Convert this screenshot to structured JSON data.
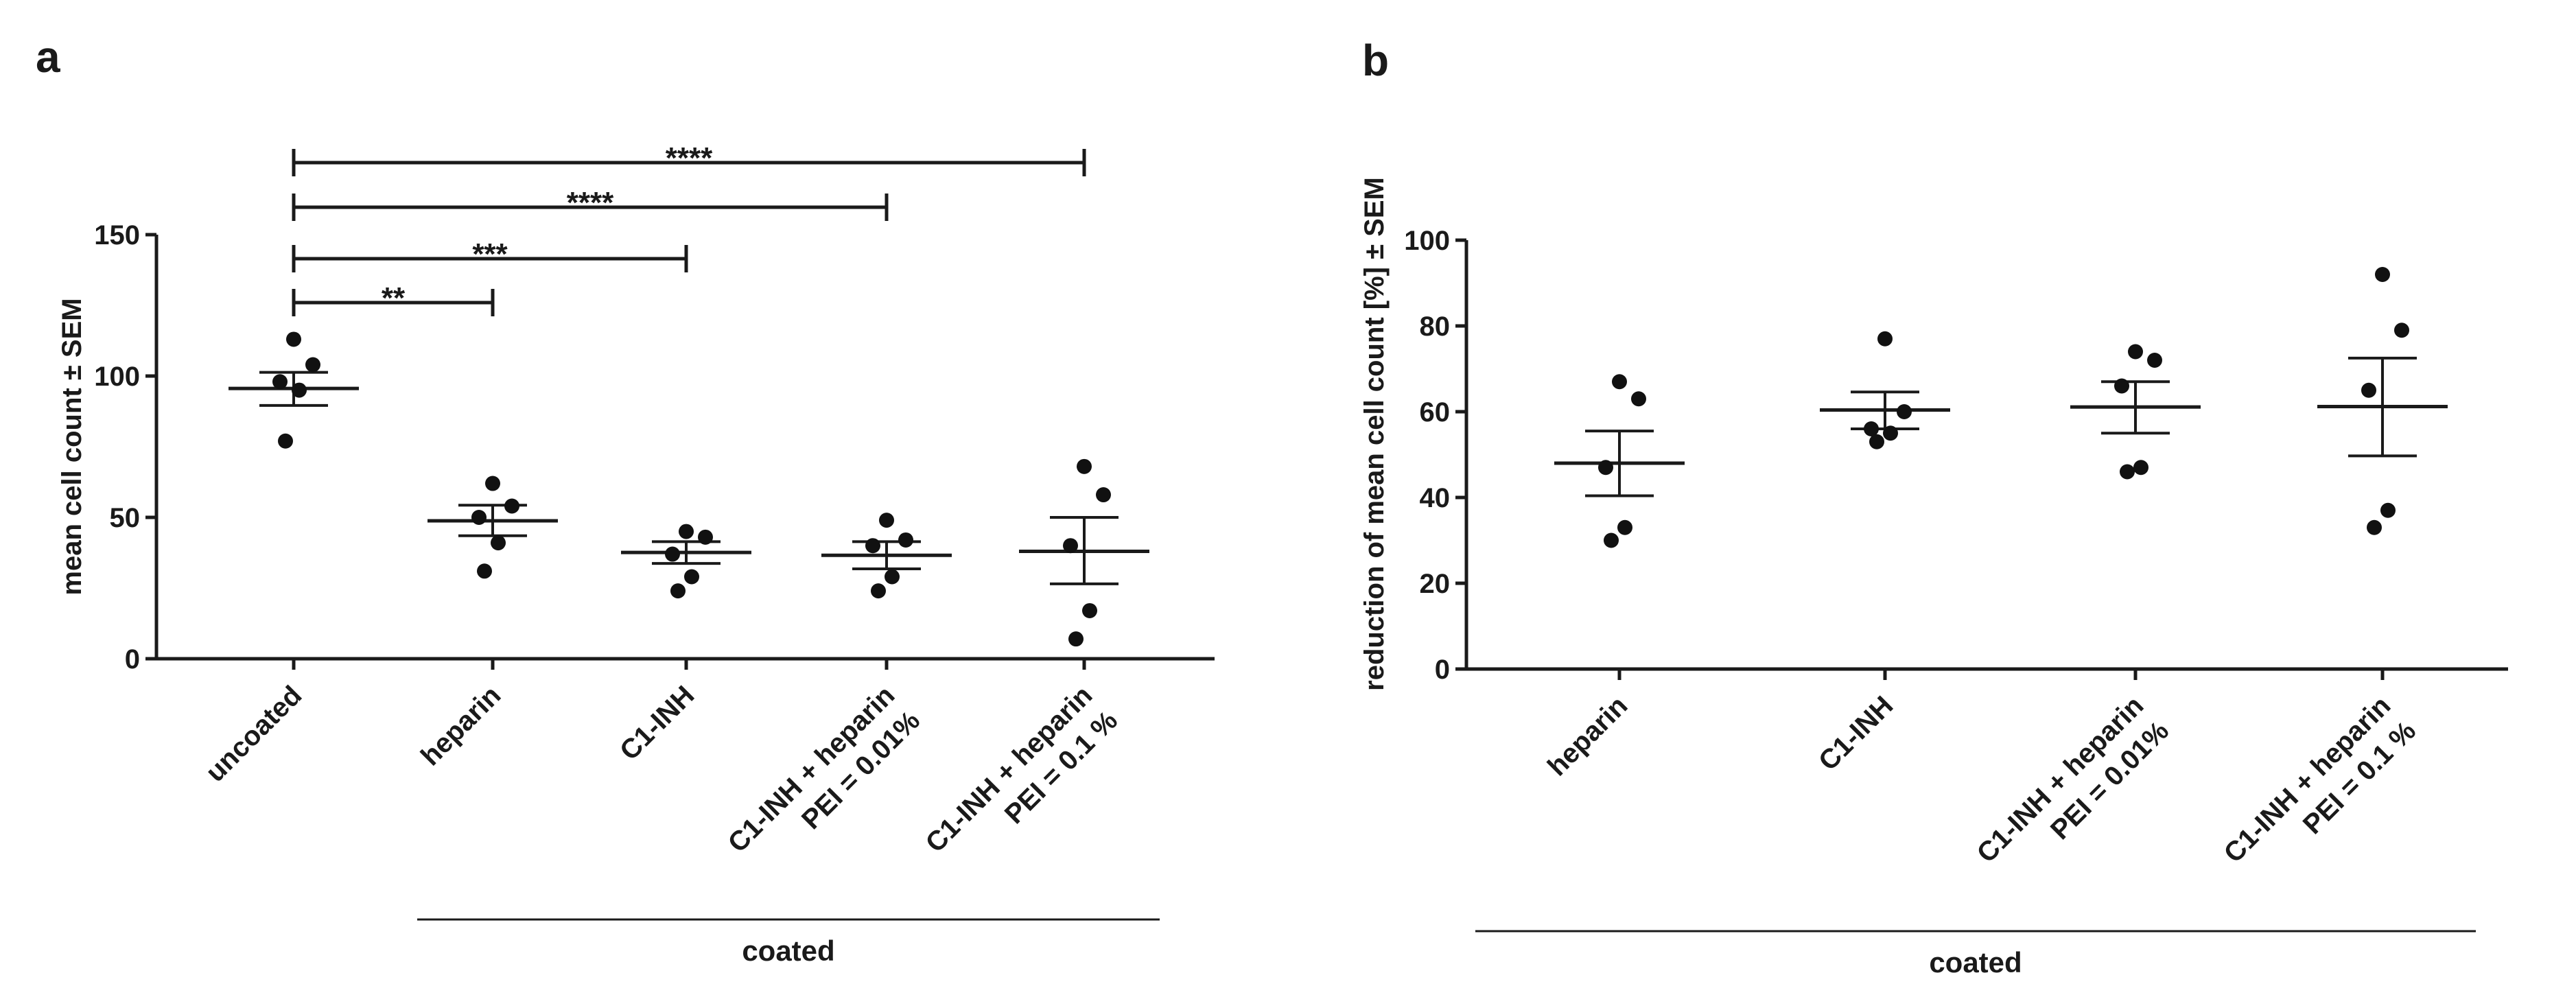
{
  "chart_data": [
    {
      "panel": "a",
      "type": "scatter",
      "ylabel": "mean cell count ± SEM",
      "ylim": [
        0,
        150
      ],
      "yticks": [
        0,
        50,
        100,
        150
      ],
      "group_label": "coated",
      "categories": [
        {
          "lines": [
            "uncoated"
          ],
          "points": [
            113,
            104,
            98,
            95,
            77
          ],
          "mean": 95.6,
          "sem_low": 89.6,
          "sem_high": 101.3
        },
        {
          "lines": [
            "heparin"
          ],
          "points": [
            62,
            54,
            50,
            41,
            31
          ],
          "mean": 48.8,
          "sem_low": 43.5,
          "sem_high": 54.3
        },
        {
          "lines": [
            "C1-INH"
          ],
          "points": [
            45,
            43,
            37,
            29,
            24
          ],
          "mean": 37.6,
          "sem_low": 33.7,
          "sem_high": 41.4
        },
        {
          "lines": [
            "C1-INH + heparin",
            "PEI = 0.01%"
          ],
          "points": [
            49,
            42,
            40,
            29,
            24
          ],
          "mean": 36.6,
          "sem_low": 31.8,
          "sem_high": 41.4
        },
        {
          "lines": [
            "C1-INH + heparin",
            "PEI = 0.1 %"
          ],
          "points": [
            68,
            58,
            40,
            17,
            7
          ],
          "mean": 38.0,
          "sem_low": 26.5,
          "sem_high": 50.0
        }
      ],
      "comparisons": [
        {
          "from": 0,
          "to": 1,
          "label": "**"
        },
        {
          "from": 0,
          "to": 2,
          "label": "***"
        },
        {
          "from": 0,
          "to": 3,
          "label": "****"
        },
        {
          "from": 0,
          "to": 4,
          "label": "****"
        }
      ]
    },
    {
      "panel": "b",
      "type": "scatter",
      "ylabel": "reduction of mean cell count [%] ± SEM",
      "ylim": [
        0,
        100
      ],
      "yticks": [
        0,
        20,
        40,
        60,
        80,
        100
      ],
      "group_label": "coated",
      "categories": [
        {
          "lines": [
            "heparin"
          ],
          "points": [
            67,
            63,
            47,
            33,
            30
          ],
          "mean": 48.0,
          "sem_low": 40.4,
          "sem_high": 55.5
        },
        {
          "lines": [
            "C1-INH"
          ],
          "points": [
            77,
            60,
            56,
            55,
            53
          ],
          "mean": 60.4,
          "sem_low": 56.0,
          "sem_high": 64.6
        },
        {
          "lines": [
            "C1-INH + heparin",
            "PEI = 0.01%"
          ],
          "points": [
            74,
            72,
            66,
            47,
            46
          ],
          "mean": 61.1,
          "sem_low": 55.0,
          "sem_high": 67.0
        },
        {
          "lines": [
            "C1-INH + heparin",
            "PEI = 0.1 %"
          ],
          "points": [
            92,
            79,
            65,
            37,
            33
          ],
          "mean": 61.2,
          "sem_low": 49.7,
          "sem_high": 72.5
        }
      ]
    }
  ]
}
